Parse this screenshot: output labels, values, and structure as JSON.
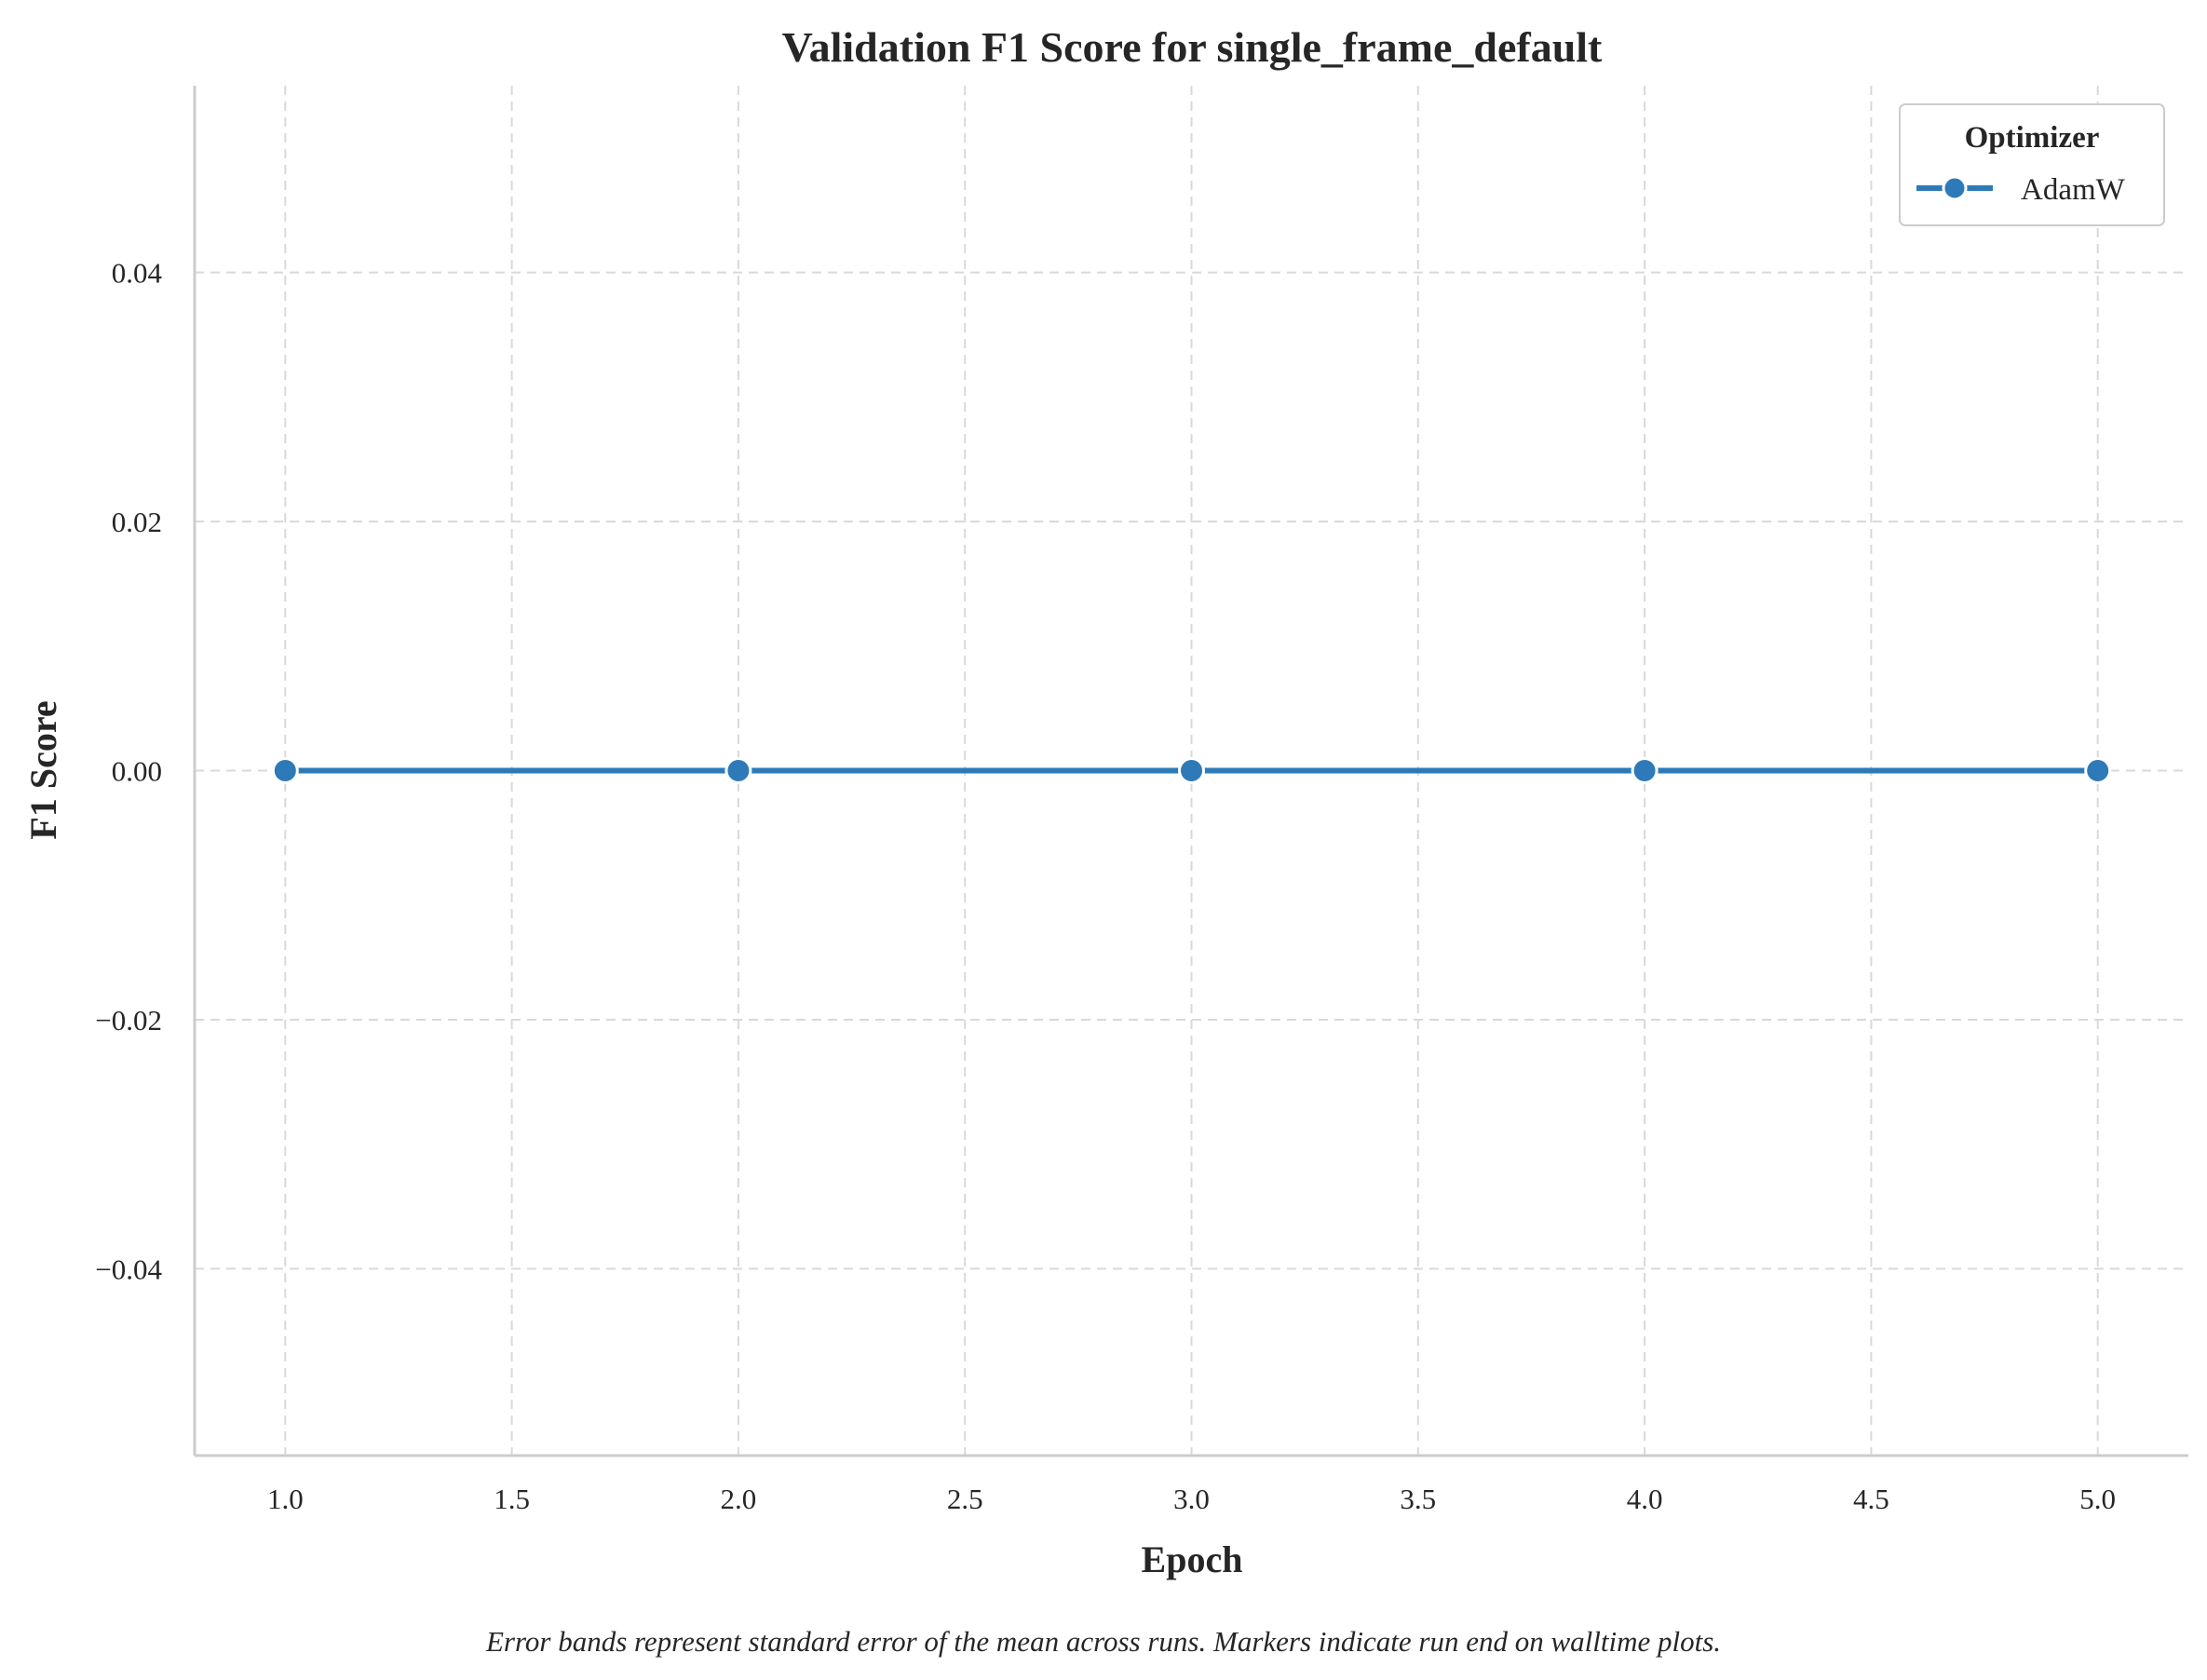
{
  "chart_data": {
    "type": "line",
    "title": "Validation F1 Score for single_frame_default",
    "xlabel": "Epoch",
    "ylabel": "F1 Score",
    "x": [
      1,
      2,
      3,
      4,
      5
    ],
    "series": [
      {
        "name": "AdamW",
        "values": [
          0.0,
          0.0,
          0.0,
          0.0,
          0.0
        ],
        "color": "#2e7ab8"
      }
    ],
    "xlim": [
      0.8,
      5.2
    ],
    "ylim": [
      -0.055,
      0.055
    ],
    "xticks": [
      1.0,
      1.5,
      2.0,
      2.5,
      3.0,
      3.5,
      4.0,
      4.5,
      5.0
    ],
    "xtick_labels": [
      "1.0",
      "1.5",
      "2.0",
      "2.5",
      "3.0",
      "3.5",
      "4.0",
      "4.5",
      "5.0"
    ],
    "yticks": [
      -0.04,
      -0.02,
      0.0,
      0.02,
      0.04
    ],
    "ytick_labels": [
      "−0.04",
      "−0.02",
      "0.00",
      "0.02",
      "0.04"
    ],
    "grid": true,
    "legend": {
      "title": "Optimizer",
      "placement": "top-right"
    },
    "caption": "Error bands represent standard error of the mean across runs. Markers indicate run end on walltime plots."
  }
}
